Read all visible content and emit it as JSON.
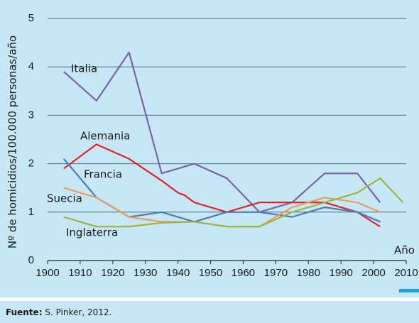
{
  "chart_data": {
    "type": "line",
    "y_label": "Nº de homicidios/100.000 personas/año",
    "x_label": "Año",
    "xlim": [
      1900,
      2010
    ],
    "xticks": [
      1900,
      1910,
      1920,
      1930,
      1940,
      1950,
      1960,
      1970,
      1980,
      1990,
      2000,
      2010
    ],
    "ylim": [
      0,
      5
    ],
    "yticks": [
      0,
      1,
      2,
      3,
      4,
      5
    ],
    "grid": true,
    "series": [
      {
        "name": "Italia",
        "color": "#7b63a8",
        "x": [
          1905,
          1915,
          1925,
          1935,
          1945,
          1955,
          1965,
          1975,
          1985,
          1995,
          2002
        ],
        "values": [
          3.9,
          3.3,
          4.3,
          1.8,
          2.0,
          1.7,
          1.0,
          1.2,
          1.8,
          1.8,
          1.2
        ]
      },
      {
        "name": "Alemania",
        "color": "#e3232a",
        "x": [
          1905,
          1915,
          1925,
          1935,
          1940,
          1942,
          1945,
          1955,
          1965,
          1975,
          1985,
          1995,
          2002
        ],
        "values": [
          1.9,
          2.4,
          2.1,
          1.65,
          1.4,
          1.35,
          1.2,
          1.0,
          1.2,
          1.2,
          1.2,
          1.0,
          0.7
        ]
      },
      {
        "name": "Francia",
        "color": "#4a7db5",
        "x": [
          1905,
          1915,
          1925,
          1935,
          1945,
          1955,
          1965,
          1975,
          1985,
          1995,
          2002
        ],
        "values": [
          2.1,
          1.3,
          0.9,
          1.0,
          0.8,
          1.0,
          1.0,
          0.9,
          1.1,
          1.0,
          0.8
        ]
      },
      {
        "name": "Suecia",
        "color": "#eb9d5e",
        "x": [
          1905,
          1915,
          1925,
          1935,
          1945,
          1955,
          1965,
          1975,
          1985,
          1995,
          2002
        ],
        "values": [
          1.5,
          1.3,
          0.9,
          0.8,
          0.8,
          0.7,
          0.7,
          1.1,
          1.3,
          1.2,
          1.0
        ]
      },
      {
        "name": "Inglaterra",
        "color": "#9bb83b",
        "x": [
          1905,
          1915,
          1925,
          1935,
          1945,
          1955,
          1965,
          1975,
          1985,
          1995,
          2002,
          2009
        ],
        "values": [
          0.9,
          0.7,
          0.7,
          0.78,
          0.8,
          0.7,
          0.7,
          1.0,
          1.2,
          1.4,
          1.7,
          1.2
        ]
      }
    ],
    "source_label": "Fuente:",
    "source": "S. Pinker, 2012."
  }
}
